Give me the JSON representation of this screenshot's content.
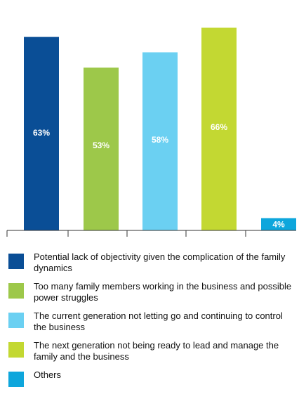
{
  "chart_data": {
    "type": "bar",
    "title": "",
    "xlabel": "",
    "ylabel": "",
    "ylim": [
      0,
      70
    ],
    "categories": [
      "Potential lack of objectivity given the complication of the family dynamics",
      "Too many family members working in the business and possible power struggles",
      "The current generation not letting go and continuing to control the business",
      "The next generation not being ready to lead and manage the family and the business",
      "Others"
    ],
    "values": [
      63,
      53,
      58,
      66,
      4
    ],
    "data_labels": [
      "63%",
      "53%",
      "58%",
      "66%",
      "4%"
    ],
    "colors": [
      "#0a4e96",
      "#9dc84a",
      "#6bd0f2",
      "#c3d832",
      "#0ea6dc"
    ],
    "grid": false,
    "legend_position": "bottom"
  }
}
